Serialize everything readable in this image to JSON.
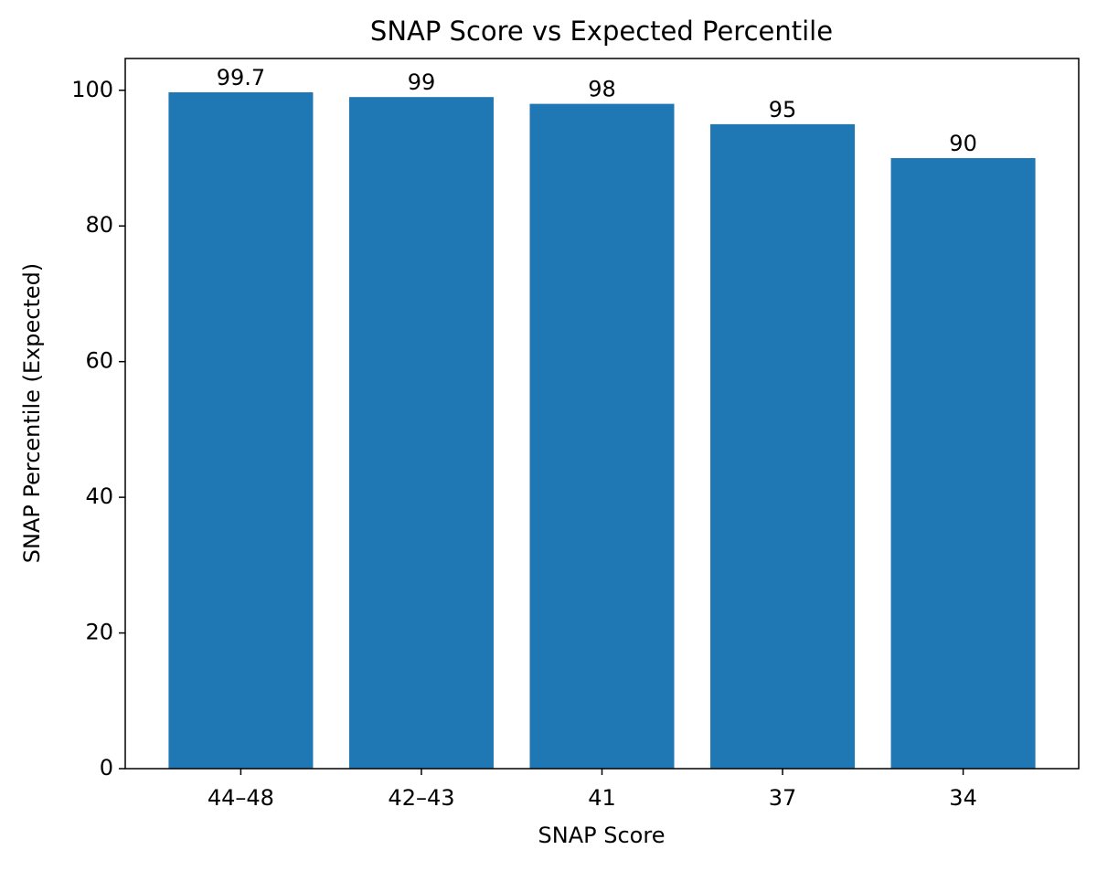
{
  "chart_data": {
    "type": "bar",
    "title": "SNAP Score vs Expected Percentile",
    "x_label": "SNAP Score",
    "y_label": "SNAP Percentile (Expected)",
    "categories": [
      "44–48",
      "42–43",
      "41",
      "37",
      "34"
    ],
    "values": [
      99.7,
      99,
      98,
      95,
      90
    ],
    "color": "#1f77b4",
    "ylim": [
      0,
      104.685
    ],
    "yticks": [
      0,
      20,
      40,
      60,
      80,
      100
    ],
    "grid": false
  }
}
